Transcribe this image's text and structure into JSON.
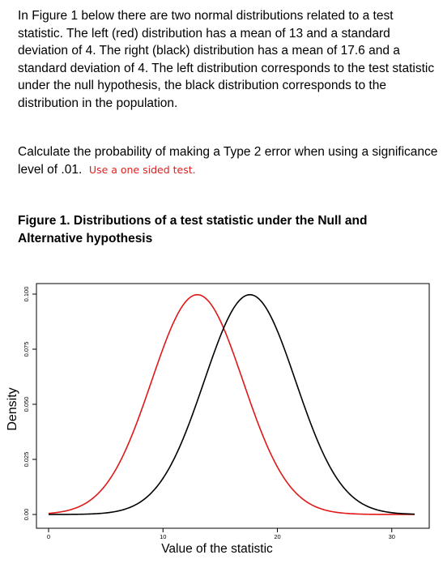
{
  "question": {
    "paragraph1": "In Figure 1 below there are two normal distributions related to a test statistic. The left (red) distribution has a mean of 13 and a standard deviation of 4. The right (black) distribution has a mean of 17.6 and a standard deviation of 4. The left distribution corresponds to the test statistic under the null hypothesis, the black distribution corresponds to the distribution in the population.",
    "paragraph2": "Calculate the probability of making a Type 2 error when using a significance level of .01.",
    "note": "Use a one sided test."
  },
  "figure": {
    "title": "Figure 1. Distributions of a test statistic under the Null and Alternative hypothesis"
  },
  "chart_data": {
    "type": "line",
    "xlabel": "Value of the statistic",
    "ylabel": "Density",
    "xlim": [
      0,
      32
    ],
    "ylim": [
      0,
      0.1
    ],
    "xticks": [
      0,
      10,
      20,
      30
    ],
    "xtick_labels": [
      "0",
      "10",
      "20",
      "30"
    ],
    "yticks": [
      0,
      0.025,
      0.05,
      0.075,
      0.1
    ],
    "ytick_labels": [
      "0.00",
      "0.025",
      "0.050",
      "0.075",
      "0.100"
    ],
    "grid": false,
    "series": [
      {
        "mean": 13,
        "sd": 4,
        "color": "#e01818"
      },
      {
        "mean": 17.6,
        "sd": 4,
        "color": "#000000"
      }
    ]
  }
}
